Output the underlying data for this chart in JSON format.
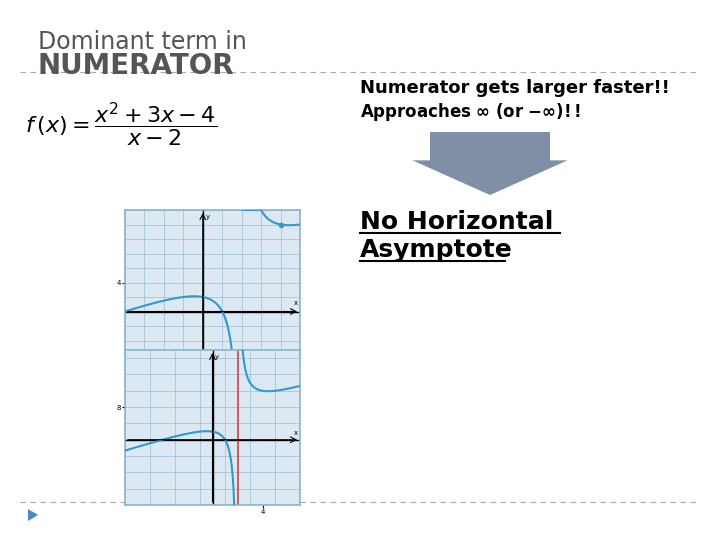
{
  "title_line1": "Dominant term in",
  "title_line2": "NUMERATOR",
  "text_numerator": "Numerator gets larger faster!!",
  "text_no_ha_line1": "No Horizontal",
  "text_no_ha_line2": "Asymptote",
  "title_color": "#555555",
  "arrow_color": "#7f8fa6",
  "graph_border_color": "#8ab4cc",
  "graph_bg_color": "#dce9f3",
  "graph_line_color": "#3399cc",
  "grid_color": "#8ab4cc",
  "divider_color": "#aaaaaa",
  "slide_bg": "#ffffff",
  "play_color": "#4a86c8",
  "graph1_xlim": [
    -4,
    5
  ],
  "graph1_ylim": [
    -6,
    14
  ],
  "graph2_xlim": [
    -7,
    7
  ],
  "graph2_ylim": [
    -16,
    22
  ]
}
